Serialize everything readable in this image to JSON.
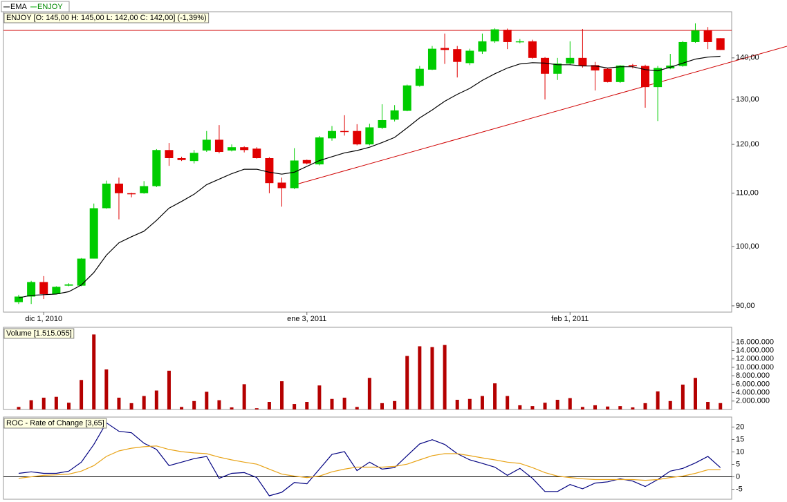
{
  "chart_data": [
    {
      "type": "candlestick",
      "title": "ENJOY [O: 145,00 H: 145,00 L: 142,00 C: 142,00] (-1,39%)",
      "categories": [
        null,
        null,
        "dic 1, 2010",
        null,
        null,
        null,
        null,
        null,
        null,
        null,
        null,
        null,
        null,
        null,
        null,
        null,
        null,
        null,
        null,
        null,
        null,
        null,
        null,
        "ene 3, 2011",
        null,
        null,
        null,
        null,
        null,
        null,
        null,
        null,
        null,
        null,
        null,
        null,
        null,
        null,
        null,
        null,
        null,
        null,
        null,
        null,
        "feb 1, 2011",
        null,
        null,
        null,
        null,
        null,
        null,
        null,
        null,
        null,
        null,
        null,
        null
      ],
      "ohlc": {
        "name": "ENJOY",
        "up_color": "#00cc00",
        "down_color": "#e00000",
        "open": [
          90.6,
          91.5,
          93.9,
          91.9,
          93.3,
          93.3,
          97.9,
          107.1,
          111.9,
          110.0,
          110.0,
          111.4,
          118.8,
          117.1,
          116.5,
          118.7,
          121.0,
          118.7,
          119.4,
          119.1,
          117.1,
          112.1,
          111.0,
          116.7,
          115.8,
          121.3,
          122.9,
          122.9,
          120.0,
          123.6,
          125.4,
          127.4,
          133.2,
          137.1,
          142.5,
          142.2,
          138.7,
          141.6,
          144.2,
          147.2,
          144.0,
          144.2,
          140.0,
          136.1,
          138.6,
          140.0,
          138.2,
          137.3,
          134.1,
          138.2,
          138.0,
          132.9,
          137.4,
          138.0,
          144.0,
          147.0,
          145
        ],
        "high": [
          91.8,
          94.1,
          94.9,
          93.2,
          93.7,
          98.0,
          108.0,
          112.5,
          113.1,
          110.1,
          112.4,
          119.0,
          120.3,
          117.4,
          118.8,
          122.9,
          124.2,
          120.0,
          119.6,
          119.4,
          117.3,
          113.1,
          119.2,
          116.8,
          121.8,
          124.0,
          126.4,
          124.4,
          124.5,
          128.9,
          128.7,
          133.5,
          138.0,
          143.0,
          146.2,
          143.0,
          142.3,
          146.2,
          147.6,
          147.5,
          144.8,
          144.6,
          140.2,
          140.0,
          144.2,
          147.4,
          139.0,
          137.5,
          138.2,
          138.5,
          138.3,
          138.0,
          141.0,
          144.3,
          148.9,
          147.9,
          145
        ],
        "low": [
          90.3,
          90.3,
          91.1,
          91.9,
          93.2,
          93.2,
          97.9,
          107.0,
          105.0,
          109.2,
          109.9,
          111.2,
          115.5,
          116.5,
          116.0,
          118.4,
          118.1,
          118.5,
          118.3,
          117.0,
          110.0,
          107.4,
          110.8,
          115.8,
          115.6,
          120.8,
          121.9,
          119.8,
          119.8,
          123.3,
          125.0,
          127.3,
          133.0,
          137.0,
          138.5,
          135.2,
          138.2,
          141.0,
          143.8,
          142.2,
          143.7,
          139.8,
          130.0,
          134.6,
          138.2,
          137.6,
          132.1,
          134.0,
          133.9,
          137.4,
          128.1,
          125.1,
          137.2,
          137.8,
          143.8,
          142.2,
          142
        ],
        "close": [
          91.5,
          93.9,
          91.9,
          93.1,
          93.5,
          97.9,
          107.1,
          111.9,
          110.0,
          109.8,
          111.4,
          118.8,
          117.1,
          116.7,
          118.2,
          121.0,
          118.4,
          119.4,
          118.8,
          117.1,
          112.0,
          111.0,
          116.6,
          116.0,
          121.5,
          122.9,
          122.7,
          120.0,
          123.7,
          125.3,
          127.5,
          133.3,
          137.3,
          142.3,
          142.0,
          139.0,
          141.8,
          144.2,
          147.3,
          144.0,
          144.2,
          140.0,
          136.1,
          138.6,
          140.0,
          138.0,
          136.9,
          134.1,
          138.1,
          138.0,
          132.9,
          137.5,
          138.1,
          144.0,
          147.0,
          144.0,
          142
        ]
      },
      "overlays": [
        {
          "name": "EMA",
          "color": "#000000",
          "values": [
            91.3,
            91.7,
            91.8,
            91.9,
            92.3,
            93.4,
            95.5,
            98.5,
            100.7,
            101.8,
            102.8,
            104.8,
            107.1,
            108.4,
            109.8,
            111.7,
            112.8,
            113.9,
            114.8,
            114.8,
            114.2,
            113.8,
            114.2,
            115.4,
            116.6,
            117.4,
            118.2,
            118.7,
            119.4,
            120.4,
            121.5,
            123.6,
            125.8,
            127.6,
            129.6,
            131.2,
            132.6,
            134.5,
            136.1,
            137.5,
            138.5,
            138.8,
            138.7,
            138.3,
            138.3,
            138.0,
            138.0,
            137.5,
            137.8,
            137.8,
            137.1,
            136.8,
            137.7,
            138.7,
            139.7,
            140.2,
            140.4
          ]
        }
      ],
      "log": true,
      "ylim": [
        89,
        152
      ],
      "yticks": [
        {
          "value": 90,
          "label": "90,00"
        },
        {
          "value": 100,
          "label": "100,00"
        },
        {
          "value": 110,
          "label": "110,00"
        },
        {
          "value": 120,
          "label": "120,00"
        },
        {
          "value": 130,
          "label": "130,00"
        },
        {
          "value": 140,
          "label": "140,00"
        }
      ]
    },
    {
      "type": "bar",
      "title": "Volume [1.515.055]",
      "color": "#b40000",
      "values": [
        600000,
        2200000,
        2800000,
        3000000,
        1600000,
        7000000,
        17800000,
        9500000,
        2800000,
        1500000,
        3200000,
        4500000,
        9200000,
        600000,
        2000000,
        4200000,
        2200000,
        500000,
        6000000,
        300000,
        1800000,
        6700000,
        1300000,
        1800000,
        5700000,
        2500000,
        2800000,
        600000,
        7500000,
        1500000,
        2000000,
        12700000,
        15000000,
        14800000,
        15300000,
        2300000,
        2500000,
        3200000,
        6200000,
        3200000,
        1000000,
        800000,
        1600000,
        2300000,
        2700000,
        600000,
        1000000,
        700000,
        800000,
        500000,
        1500000,
        4300000,
        2000000,
        5900000,
        7500000,
        1800000,
        1515055
      ],
      "ylim": [
        0,
        19500000
      ],
      "yticks": [
        {
          "value": 2000000,
          "label": "2.000.000"
        },
        {
          "value": 4000000,
          "label": "4.000.000"
        },
        {
          "value": 6000000,
          "label": "6.000.000"
        },
        {
          "value": 8000000,
          "label": "8.000.000"
        },
        {
          "value": 10000000,
          "label": "10.000.000"
        },
        {
          "value": 12000000,
          "label": "12.000.000"
        },
        {
          "value": 14000000,
          "label": "14.000.000"
        },
        {
          "value": 16000000,
          "label": "16.000.000"
        }
      ]
    },
    {
      "type": "line",
      "title": "ROC - Rate of Change [3,65]",
      "series": [
        {
          "color": "#000080",
          "values": [
            1.4,
            2.0,
            1.4,
            1.4,
            2.3,
            5.9,
            13.0,
            21.7,
            18.3,
            17.7,
            13.5,
            11.0,
            4.5,
            5.9,
            7.3,
            8.2,
            -0.6,
            1.4,
            1.7,
            -0.3,
            -7.6,
            -6.2,
            -2.3,
            -2.8,
            3.1,
            9.0,
            10.1,
            2.5,
            5.9,
            3.1,
            3.7,
            8.5,
            13.2,
            14.9,
            13.0,
            9.3,
            6.8,
            5.4,
            3.9,
            0.6,
            3.4,
            -0.6,
            -5.9,
            -5.9,
            -3.1,
            -4.8,
            -2.5,
            -2.0,
            -0.8,
            -1.7,
            -3.9,
            -1.1,
            2.3,
            3.4,
            5.6,
            8.2,
            3.7
          ]
        },
        {
          "color": "#e8a317",
          "values": [
            -0.6,
            0,
            0.6,
            0.8,
            1.1,
            2.3,
            4.5,
            8.2,
            10.4,
            11.5,
            12.1,
            12.4,
            11.0,
            10.1,
            9.6,
            9.3,
            7.9,
            6.8,
            5.9,
            5.1,
            3.1,
            1.1,
            0.3,
            -0.3,
            0.3,
            2.0,
            3.1,
            3.9,
            3.9,
            3.9,
            4.2,
            5.1,
            6.8,
            8.5,
            9.3,
            9.3,
            8.5,
            7.6,
            6.8,
            5.9,
            5.4,
            3.7,
            1.7,
            0.3,
            -0.3,
            -0.8,
            -1.1,
            -1.1,
            -1.1,
            -1.1,
            -1.4,
            -1.1,
            -0.3,
            0.3,
            1.4,
            2.8,
            2.8
          ]
        }
      ],
      "baseline": 0,
      "ylim": [
        -9,
        24
      ],
      "yticks": [
        -5,
        0,
        5,
        10,
        15,
        20
      ]
    }
  ]
}
